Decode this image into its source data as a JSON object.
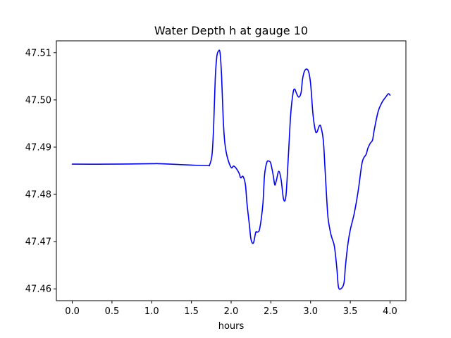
{
  "chart_data": {
    "type": "line",
    "title": "Water Depth h at gauge 10",
    "xlabel": "hours",
    "ylabel": "",
    "xlim": [
      -0.2,
      4.2
    ],
    "ylim": [
      47.4575,
      47.5125
    ],
    "grid": false,
    "legend": "none",
    "x_ticks": [
      0.0,
      0.5,
      1.0,
      1.5,
      2.0,
      2.5,
      3.0,
      3.5,
      4.0
    ],
    "x_tick_labels": [
      "0.0",
      "0.5",
      "1.0",
      "1.5",
      "2.0",
      "2.5",
      "3.0",
      "3.5",
      "4.0"
    ],
    "y_ticks": [
      47.46,
      47.47,
      47.48,
      47.49,
      47.5,
      47.51
    ],
    "y_tick_labels": [
      "47.46",
      "47.47",
      "47.48",
      "47.49",
      "47.50",
      "47.51"
    ],
    "series": [
      {
        "color": "#0000ff",
        "x": [
          0.0,
          0.5,
          1.0,
          1.1,
          1.5,
          1.7,
          1.73,
          1.76,
          1.78,
          1.8,
          1.82,
          1.84,
          1.86,
          1.88,
          1.9,
          1.92,
          1.95,
          2.0,
          2.03,
          2.06,
          2.1,
          2.12,
          2.15,
          2.18,
          2.2,
          2.23,
          2.25,
          2.28,
          2.31,
          2.33,
          2.36,
          2.4,
          2.42,
          2.45,
          2.48,
          2.5,
          2.53,
          2.55,
          2.57,
          2.6,
          2.63,
          2.66,
          2.69,
          2.72,
          2.75,
          2.78,
          2.8,
          2.82,
          2.85,
          2.88,
          2.9,
          2.93,
          2.97,
          3.0,
          3.03,
          3.06,
          3.08,
          3.11,
          3.13,
          3.16,
          3.18,
          3.2,
          3.22,
          3.25,
          3.27,
          3.3,
          3.33,
          3.35,
          3.38,
          3.42,
          3.44,
          3.47,
          3.5,
          3.55,
          3.6,
          3.65,
          3.7,
          3.72,
          3.75,
          3.78,
          3.8,
          3.85,
          3.9,
          3.95,
          3.98,
          4.0
        ],
        "values": [
          47.4864,
          47.4864,
          47.4865,
          47.4865,
          47.4862,
          47.4861,
          47.4863,
          47.4885,
          47.4945,
          47.5045,
          47.5092,
          47.5103,
          47.51,
          47.505,
          47.496,
          47.491,
          47.488,
          47.4857,
          47.486,
          47.4856,
          47.4845,
          47.4835,
          47.4838,
          47.482,
          47.478,
          47.4735,
          47.4705,
          47.4697,
          47.472,
          47.472,
          47.4728,
          47.478,
          47.484,
          47.4868,
          47.487,
          47.4865,
          47.484,
          47.482,
          47.483,
          47.4849,
          47.483,
          47.479,
          47.4797,
          47.488,
          47.497,
          47.5015,
          47.5023,
          47.5015,
          47.5006,
          47.5015,
          47.5045,
          47.5063,
          47.5062,
          47.5035,
          47.497,
          47.4935,
          47.4932,
          47.4945,
          47.4943,
          47.4915,
          47.486,
          47.48,
          47.475,
          47.472,
          47.4707,
          47.469,
          47.4645,
          47.4605,
          47.46,
          47.4612,
          47.465,
          47.4695,
          47.4725,
          47.476,
          47.4808,
          47.4868,
          47.4885,
          47.4897,
          47.4908,
          47.4915,
          47.4935,
          47.4975,
          47.4995,
          47.5007,
          47.5013,
          47.501
        ]
      }
    ]
  }
}
